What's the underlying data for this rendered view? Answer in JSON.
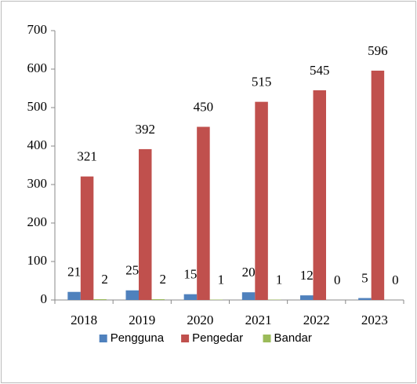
{
  "chart_data": {
    "type": "bar",
    "categories": [
      "2018",
      "2019",
      "2020",
      "2021",
      "2022",
      "2023"
    ],
    "series": [
      {
        "name": "Pengguna",
        "color": "#4f81bd",
        "values": [
          21,
          25,
          15,
          20,
          12,
          5
        ]
      },
      {
        "name": "Pengedar",
        "color": "#c0504d",
        "values": [
          321,
          392,
          450,
          515,
          545,
          596
        ]
      },
      {
        "name": "Bandar",
        "color": "#9bbb59",
        "values": [
          2,
          2,
          1,
          1,
          0,
          0
        ]
      }
    ],
    "ylim": [
      0,
      700
    ],
    "yticks": [
      0,
      100,
      200,
      300,
      400,
      500,
      600,
      700
    ],
    "grid": false,
    "legend": "bottom"
  }
}
